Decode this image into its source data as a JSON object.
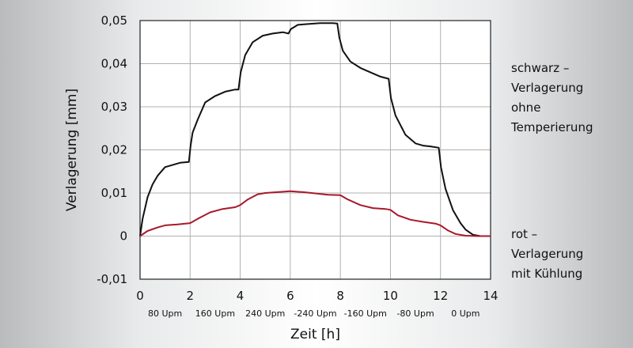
{
  "chart_data": {
    "type": "line",
    "xlabel": "Zeit [h]",
    "ylabel": "Verlagerung [mm]",
    "xlim": [
      0,
      14
    ],
    "ylim": [
      -0.01,
      0.05
    ],
    "x_ticks": [
      "0",
      "2",
      "4",
      "6",
      "8",
      "10",
      "12",
      "14"
    ],
    "y_ticks": [
      "0,05",
      "0,04",
      "0,03",
      "0,02",
      "0,01",
      "0",
      "-0,01"
    ],
    "speed_labels": [
      "80 Upm",
      "160 Upm",
      "240 Upm",
      "-240 Upm",
      "-160 Upm",
      "-80 Upm",
      "0 Upm"
    ],
    "speed_positions_h": [
      1,
      3,
      5,
      7,
      9,
      11,
      13
    ],
    "grid": true,
    "series": [
      {
        "color": "#111111",
        "x": [
          0,
          0.1,
          0.3,
          0.5,
          0.7,
          1.0,
          1.3,
          1.6,
          1.95,
          2.02,
          2.1,
          2.3,
          2.6,
          3.0,
          3.4,
          3.8,
          3.93,
          4.02,
          4.2,
          4.5,
          4.9,
          5.3,
          5.7,
          5.93,
          6.02,
          6.3,
          6.7,
          7.2,
          7.7,
          7.88,
          7.96,
          8.1,
          8.4,
          8.8,
          9.2,
          9.6,
          9.93,
          10.02,
          10.2,
          10.6,
          11.0,
          11.3,
          11.6,
          11.93,
          12.02,
          12.2,
          12.5,
          12.8,
          13.0,
          13.3,
          13.6,
          14.0
        ],
        "y": [
          0.0,
          0.004,
          0.009,
          0.012,
          0.014,
          0.016,
          0.0165,
          0.017,
          0.0172,
          0.021,
          0.024,
          0.027,
          0.031,
          0.0325,
          0.0335,
          0.034,
          0.034,
          0.038,
          0.042,
          0.045,
          0.0465,
          0.047,
          0.0473,
          0.047,
          0.048,
          0.049,
          0.0492,
          0.0494,
          0.0494,
          0.0493,
          0.046,
          0.043,
          0.0405,
          0.039,
          0.038,
          0.037,
          0.0365,
          0.032,
          0.028,
          0.0235,
          0.0215,
          0.021,
          0.0208,
          0.0205,
          0.016,
          0.011,
          0.006,
          0.003,
          0.0015,
          0.0003,
          0.0,
          0.0
        ]
      },
      {
        "color": "#a8192b",
        "x": [
          0,
          0.3,
          0.7,
          1.0,
          1.5,
          2.0,
          2.3,
          2.8,
          3.3,
          3.8,
          4.0,
          4.3,
          4.7,
          5.0,
          5.5,
          6.0,
          6.5,
          7.0,
          7.5,
          8.0,
          8.3,
          8.8,
          9.3,
          9.8,
          10.0,
          10.3,
          10.8,
          11.3,
          11.8,
          12.0,
          12.3,
          12.6,
          13.0,
          13.5,
          14.0
        ],
        "y": [
          0.0,
          0.0012,
          0.002,
          0.0025,
          0.0027,
          0.003,
          0.004,
          0.0055,
          0.0063,
          0.0067,
          0.0072,
          0.0085,
          0.0097,
          0.01,
          0.0102,
          0.0104,
          0.0102,
          0.0099,
          0.0096,
          0.0095,
          0.0085,
          0.0072,
          0.0065,
          0.0063,
          0.0061,
          0.0048,
          0.0038,
          0.0033,
          0.0029,
          0.0025,
          0.0013,
          0.0005,
          0.0001,
          0.0,
          0.0
        ]
      }
    ]
  },
  "legend": {
    "black": [
      "schwarz –",
      "Verlagerung",
      "ohne",
      "Temperierung"
    ],
    "red": [
      "rot –",
      "Verlagerung",
      "mit Kühlung"
    ]
  }
}
